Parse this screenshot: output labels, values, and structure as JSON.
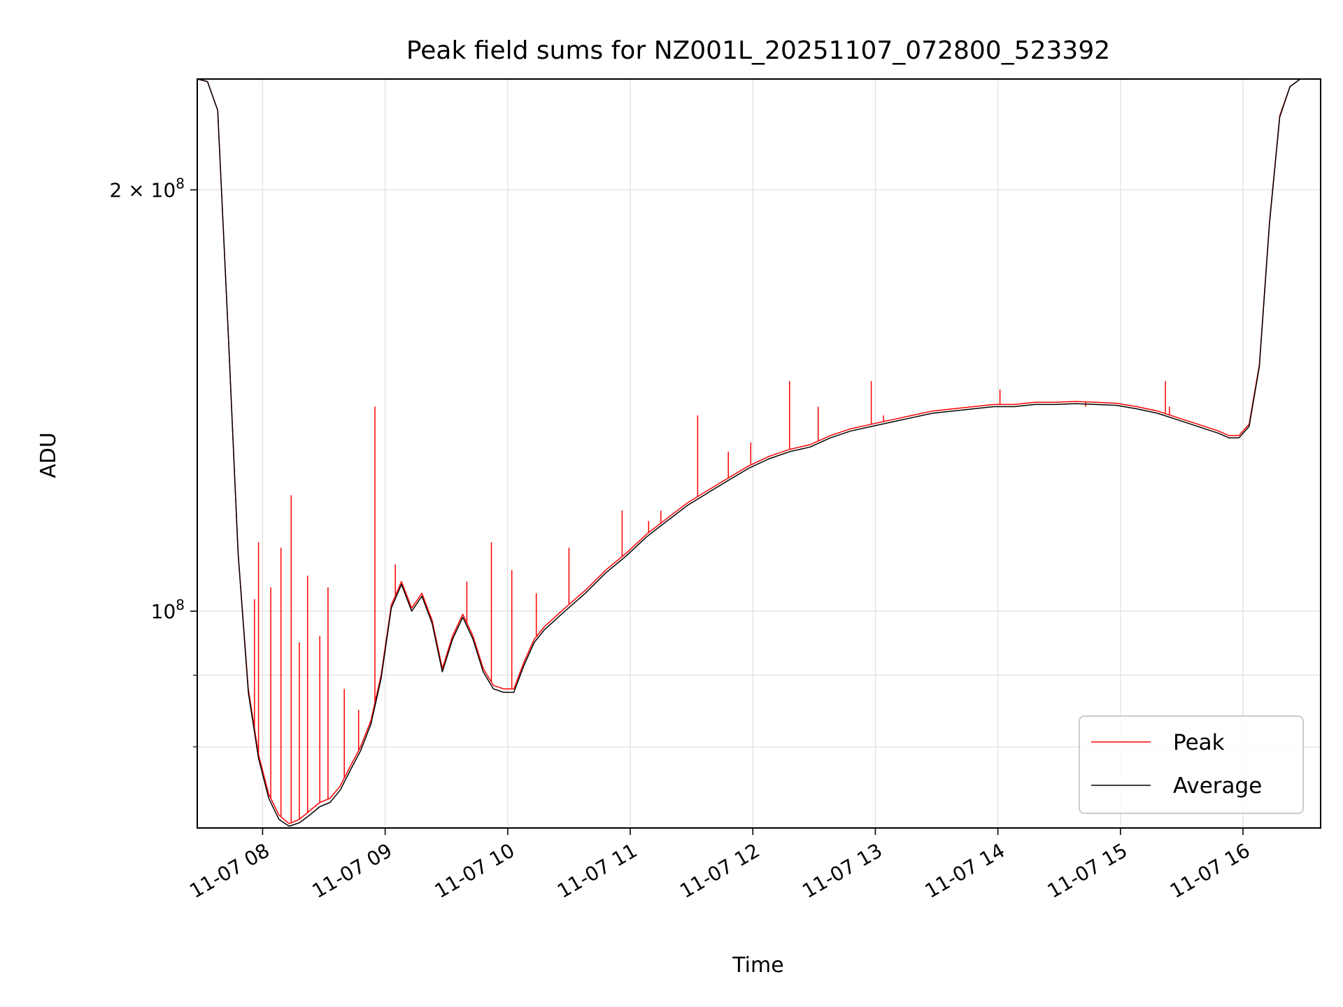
{
  "chart_data": {
    "type": "line",
    "title": "Peak field sums for NZ001L_20251107_072800_523392",
    "xlabel": "Time",
    "ylabel": "ADU",
    "y_scale": "log",
    "xlim": [
      "2025-11-07 07:28",
      "2025-11-07 16:38"
    ],
    "ylim": [
      70000000,
      240000000
    ],
    "x_ticks": [
      "11-07 08",
      "11-07 09",
      "11-07 10",
      "11-07 11",
      "11-07 12",
      "11-07 13",
      "11-07 14",
      "11-07 15",
      "11-07 16"
    ],
    "x_tick_times": [
      "2025-11-07 08:00",
      "2025-11-07 09:00",
      "2025-11-07 10:00",
      "2025-11-07 11:00",
      "2025-11-07 12:00",
      "2025-11-07 13:00",
      "2025-11-07 14:00",
      "2025-11-07 15:00",
      "2025-11-07 16:00"
    ],
    "y_ticks": [
      {
        "value": 200000000,
        "label_base": "2 × 10",
        "label_exp": "8"
      },
      {
        "value": 100000000,
        "label_base": "10",
        "label_exp": "8"
      }
    ],
    "y_minor_ticks": [
      80000000,
      90000000
    ],
    "grid": true,
    "legend_position": "lower-right",
    "series": [
      {
        "name": "Peak",
        "color": "#ff0000",
        "x": [
          "2025-11-07 07:28",
          "2025-11-07 07:33",
          "2025-11-07 07:38",
          "2025-11-07 07:43",
          "2025-11-07 07:48",
          "2025-11-07 07:53",
          "2025-11-07 07:58",
          "2025-11-07 08:03",
          "2025-11-07 08:08",
          "2025-11-07 08:13",
          "2025-11-07 08:18",
          "2025-11-07 08:23",
          "2025-11-07 08:28",
          "2025-11-07 08:33",
          "2025-11-07 08:38",
          "2025-11-07 08:43",
          "2025-11-07 08:48",
          "2025-11-07 08:53",
          "2025-11-07 08:58",
          "2025-11-07 09:03",
          "2025-11-07 09:08",
          "2025-11-07 09:13",
          "2025-11-07 09:18",
          "2025-11-07 09:23",
          "2025-11-07 09:28",
          "2025-11-07 09:33",
          "2025-11-07 09:38",
          "2025-11-07 09:43",
          "2025-11-07 09:48",
          "2025-11-07 09:53",
          "2025-11-07 09:58",
          "2025-11-07 10:03",
          "2025-11-07 10:08",
          "2025-11-07 10:13",
          "2025-11-07 10:18",
          "2025-11-07 10:28",
          "2025-11-07 10:38",
          "2025-11-07 10:48",
          "2025-11-07 10:58",
          "2025-11-07 11:08",
          "2025-11-07 11:18",
          "2025-11-07 11:28",
          "2025-11-07 11:38",
          "2025-11-07 11:48",
          "2025-11-07 11:58",
          "2025-11-07 12:08",
          "2025-11-07 12:18",
          "2025-11-07 12:28",
          "2025-11-07 12:38",
          "2025-11-07 12:48",
          "2025-11-07 12:58",
          "2025-11-07 13:08",
          "2025-11-07 13:18",
          "2025-11-07 13:28",
          "2025-11-07 13:38",
          "2025-11-07 13:48",
          "2025-11-07 13:58",
          "2025-11-07 14:08",
          "2025-11-07 14:18",
          "2025-11-07 14:28",
          "2025-11-07 14:38",
          "2025-11-07 14:48",
          "2025-11-07 14:58",
          "2025-11-07 15:08",
          "2025-11-07 15:18",
          "2025-11-07 15:28",
          "2025-11-07 15:38",
          "2025-11-07 15:48",
          "2025-11-07 15:53",
          "2025-11-07 15:58",
          "2025-11-07 16:03",
          "2025-11-07 16:08",
          "2025-11-07 16:13",
          "2025-11-07 16:18",
          "2025-11-07 16:23",
          "2025-11-07 16:28",
          "2025-11-07 16:33",
          "2025-11-07 16:38"
        ],
        "y": [
          240000000,
          239000000,
          228000000,
          160000000,
          110000000,
          88000000,
          79000000,
          74000000,
          71500000,
          70500000,
          71000000,
          72000000,
          73000000,
          73500000,
          75000000,
          77500000,
          80000000,
          83500000,
          90000000,
          101000000,
          105000000,
          100500000,
          103000000,
          98500000,
          91000000,
          96000000,
          99500000,
          96000000,
          91000000,
          88500000,
          88000000,
          88000000,
          92000000,
          95500000,
          97500000,
          100500000,
          103500000,
          107000000,
          110000000,
          113500000,
          116500000,
          119500000,
          122000000,
          124500000,
          127000000,
          129000000,
          130500000,
          131500000,
          133500000,
          135000000,
          136000000,
          137000000,
          138000000,
          139000000,
          139500000,
          140000000,
          140500000,
          140500000,
          141000000,
          141000000,
          141200000,
          141000000,
          140800000,
          140000000,
          139000000,
          137500000,
          136000000,
          134500000,
          133500000,
          133500000,
          136000000,
          150000000,
          190000000,
          226000000,
          237000000,
          240000000,
          240000000,
          240000000
        ]
      },
      {
        "name": "Average",
        "color": "#000000",
        "x": [
          "2025-11-07 07:28",
          "2025-11-07 07:33",
          "2025-11-07 07:38",
          "2025-11-07 07:43",
          "2025-11-07 07:48",
          "2025-11-07 07:53",
          "2025-11-07 07:58",
          "2025-11-07 08:03",
          "2025-11-07 08:08",
          "2025-11-07 08:13",
          "2025-11-07 08:18",
          "2025-11-07 08:23",
          "2025-11-07 08:28",
          "2025-11-07 08:33",
          "2025-11-07 08:38",
          "2025-11-07 08:43",
          "2025-11-07 08:48",
          "2025-11-07 08:53",
          "2025-11-07 08:58",
          "2025-11-07 09:03",
          "2025-11-07 09:08",
          "2025-11-07 09:13",
          "2025-11-07 09:18",
          "2025-11-07 09:23",
          "2025-11-07 09:28",
          "2025-11-07 09:33",
          "2025-11-07 09:38",
          "2025-11-07 09:43",
          "2025-11-07 09:48",
          "2025-11-07 09:53",
          "2025-11-07 09:58",
          "2025-11-07 10:03",
          "2025-11-07 10:08",
          "2025-11-07 10:13",
          "2025-11-07 10:18",
          "2025-11-07 10:28",
          "2025-11-07 10:38",
          "2025-11-07 10:48",
          "2025-11-07 10:58",
          "2025-11-07 11:08",
          "2025-11-07 11:18",
          "2025-11-07 11:28",
          "2025-11-07 11:38",
          "2025-11-07 11:48",
          "2025-11-07 11:58",
          "2025-11-07 12:08",
          "2025-11-07 12:18",
          "2025-11-07 12:28",
          "2025-11-07 12:38",
          "2025-11-07 12:48",
          "2025-11-07 12:58",
          "2025-11-07 13:08",
          "2025-11-07 13:18",
          "2025-11-07 13:28",
          "2025-11-07 13:38",
          "2025-11-07 13:48",
          "2025-11-07 13:58",
          "2025-11-07 14:08",
          "2025-11-07 14:18",
          "2025-11-07 14:28",
          "2025-11-07 14:38",
          "2025-11-07 14:48",
          "2025-11-07 14:58",
          "2025-11-07 15:08",
          "2025-11-07 15:18",
          "2025-11-07 15:28",
          "2025-11-07 15:38",
          "2025-11-07 15:48",
          "2025-11-07 15:53",
          "2025-11-07 15:58",
          "2025-11-07 16:03",
          "2025-11-07 16:08",
          "2025-11-07 16:13",
          "2025-11-07 16:18",
          "2025-11-07 16:23",
          "2025-11-07 16:28",
          "2025-11-07 16:33",
          "2025-11-07 16:38"
        ],
        "y": [
          240000000,
          239000000,
          228000000,
          160000000,
          110000000,
          87500000,
          78500000,
          73500000,
          71000000,
          70200000,
          70600000,
          71500000,
          72500000,
          73000000,
          74500000,
          77000000,
          79500000,
          83000000,
          89500000,
          100500000,
          104500000,
          100000000,
          102500000,
          98000000,
          90500000,
          95500000,
          99000000,
          95500000,
          90500000,
          88000000,
          87500000,
          87500000,
          91500000,
          95000000,
          97000000,
          100000000,
          103000000,
          106500000,
          109500000,
          113000000,
          116000000,
          119000000,
          121500000,
          124000000,
          126500000,
          128500000,
          130000000,
          131000000,
          133000000,
          134500000,
          135500000,
          136500000,
          137500000,
          138500000,
          139000000,
          139500000,
          140000000,
          140000000,
          140500000,
          140500000,
          140700000,
          140500000,
          140300000,
          139500000,
          138500000,
          137000000,
          135500000,
          134000000,
          133000000,
          133000000,
          135500000,
          149500000,
          189500000,
          225500000,
          237000000,
          240000000,
          240000000,
          240000000
        ]
      }
    ],
    "peak_spikes": [
      {
        "x": "2025-11-07 07:56",
        "y": 102000000
      },
      {
        "x": "2025-11-07 07:58",
        "y": 112000000
      },
      {
        "x": "2025-11-07 08:04",
        "y": 104000000
      },
      {
        "x": "2025-11-07 08:09",
        "y": 111000000
      },
      {
        "x": "2025-11-07 08:14",
        "y": 121000000
      },
      {
        "x": "2025-11-07 08:18",
        "y": 95000000
      },
      {
        "x": "2025-11-07 08:22",
        "y": 106000000
      },
      {
        "x": "2025-11-07 08:28",
        "y": 96000000
      },
      {
        "x": "2025-11-07 08:32",
        "y": 104000000
      },
      {
        "x": "2025-11-07 08:40",
        "y": 88000000
      },
      {
        "x": "2025-11-07 08:47",
        "y": 85000000
      },
      {
        "x": "2025-11-07 08:55",
        "y": 140000000
      },
      {
        "x": "2025-11-07 09:05",
        "y": 108000000
      },
      {
        "x": "2025-11-07 09:40",
        "y": 105000000
      },
      {
        "x": "2025-11-07 09:52",
        "y": 112000000
      },
      {
        "x": "2025-11-07 10:02",
        "y": 107000000
      },
      {
        "x": "2025-11-07 10:14",
        "y": 103000000
      },
      {
        "x": "2025-11-07 10:30",
        "y": 111000000
      },
      {
        "x": "2025-11-07 10:56",
        "y": 118000000
      },
      {
        "x": "2025-11-07 11:09",
        "y": 116000000
      },
      {
        "x": "2025-11-07 11:15",
        "y": 118000000
      },
      {
        "x": "2025-11-07 11:33",
        "y": 138000000
      },
      {
        "x": "2025-11-07 11:48",
        "y": 130000000
      },
      {
        "x": "2025-11-07 11:59",
        "y": 132000000
      },
      {
        "x": "2025-11-07 12:18",
        "y": 146000000
      },
      {
        "x": "2025-11-07 12:32",
        "y": 140000000
      },
      {
        "x": "2025-11-07 12:58",
        "y": 146000000
      },
      {
        "x": "2025-11-07 13:04",
        "y": 138000000
      },
      {
        "x": "2025-11-07 14:01",
        "y": 144000000
      },
      {
        "x": "2025-11-07 14:43",
        "y": 140000000
      },
      {
        "x": "2025-11-07 15:22",
        "y": 146000000
      },
      {
        "x": "2025-11-07 15:24",
        "y": 140000000
      }
    ]
  }
}
